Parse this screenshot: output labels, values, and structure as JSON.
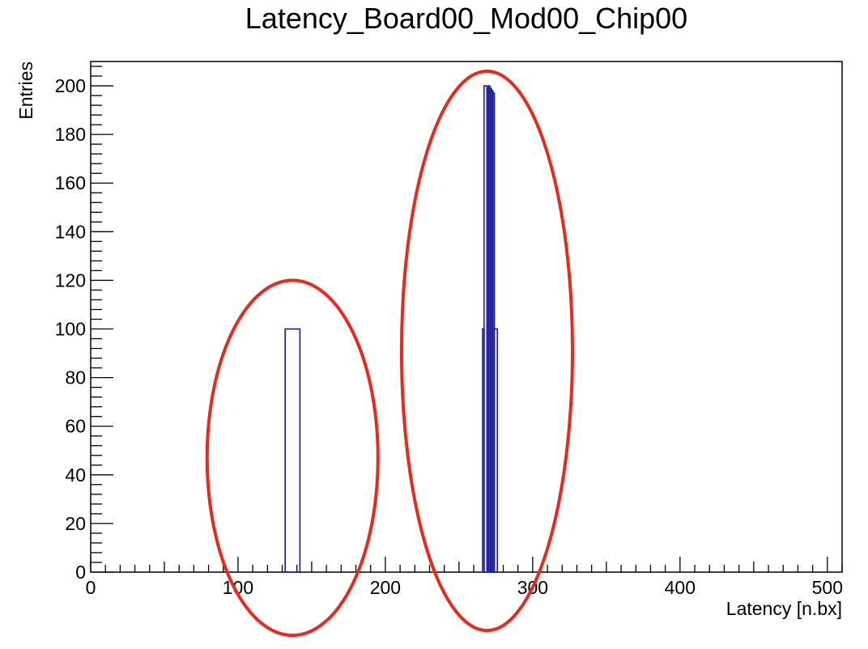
{
  "chart_data": {
    "type": "histogram",
    "title": "Latency_Board00_Mod00_Chip00",
    "xlabel": "Latency [n.bx]",
    "ylabel": "Entries",
    "xlim": [
      0,
      510
    ],
    "ylim": [
      0,
      210
    ],
    "x_ticks": [
      0,
      100,
      200,
      300,
      400,
      500
    ],
    "y_ticks": [
      0,
      20,
      40,
      60,
      80,
      100,
      120,
      140,
      160,
      180,
      200
    ],
    "bins": [
      {
        "x0": 132,
        "x1": 142,
        "value": 100
      },
      {
        "x0": 266,
        "x1": 267,
        "value": 100
      },
      {
        "x0": 267,
        "x1": 269,
        "value": 200
      },
      {
        "x0": 269,
        "x1": 270,
        "value": 199
      },
      {
        "x0": 270,
        "x1": 271,
        "value": 200
      },
      {
        "x0": 271,
        "x1": 272,
        "value": 199
      },
      {
        "x0": 272,
        "x1": 273,
        "value": 198
      },
      {
        "x0": 273,
        "x1": 274,
        "value": 197
      },
      {
        "x0": 274,
        "x1": 276,
        "value": 100
      }
    ],
    "grid": false,
    "annotations": [
      {
        "type": "ellipse",
        "cx": 137,
        "cy": 47,
        "rx": 58,
        "ry": 73
      },
      {
        "type": "ellipse",
        "cx": 269,
        "cy": 91,
        "rx": 58,
        "ry": 115
      }
    ],
    "colors": {
      "line": "#1a1a9a",
      "annotation": "#e8291c",
      "axis": "#000000"
    }
  }
}
